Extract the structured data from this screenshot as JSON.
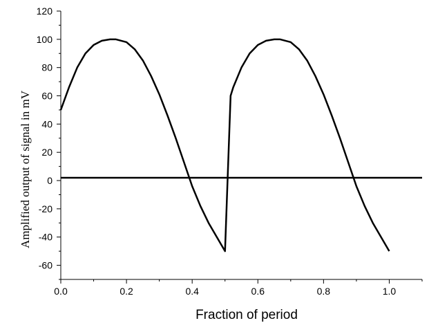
{
  "chart_data": {
    "type": "line",
    "title": "",
    "xlabel": "Fraction of period",
    "ylabel": "Amplified output of signal in mV",
    "xlim": [
      0,
      1.1
    ],
    "ylim": [
      -70,
      120
    ],
    "x_ticks": [
      0.0,
      0.2,
      0.4,
      0.6,
      0.8,
      1.0
    ],
    "x_tick_labels": [
      "0.0",
      "0.2",
      "0.4",
      "0.6",
      "0.8",
      "1.0"
    ],
    "y_ticks": [
      -60,
      -40,
      -20,
      0,
      20,
      40,
      60,
      80,
      100,
      120
    ],
    "y_tick_labels": [
      "-60",
      "-40",
      "-20",
      "0",
      "20",
      "40",
      "60",
      "80",
      "100",
      "120"
    ],
    "grid": false,
    "legend": "none",
    "series": [
      {
        "color": "#000000",
        "x": [
          0.0,
          0.025,
          0.05,
          0.075,
          0.1,
          0.125,
          0.15,
          0.167,
          0.2,
          0.225,
          0.25,
          0.275,
          0.3,
          0.325,
          0.35,
          0.375,
          0.4,
          0.425,
          0.45,
          0.475,
          0.5,
          0.517,
          0.525,
          0.55,
          0.575,
          0.6,
          0.625,
          0.65,
          0.667,
          0.7,
          0.725,
          0.75,
          0.775,
          0.8,
          0.825,
          0.85,
          0.875,
          0.9,
          0.925,
          0.95,
          0.975,
          1.0
        ],
        "y": [
          50,
          66,
          80,
          90,
          96,
          99,
          100,
          100,
          98,
          93,
          85,
          74,
          61,
          46,
          30,
          13,
          -4,
          -18,
          -30,
          -40,
          -50,
          60,
          66,
          80,
          90,
          96,
          99,
          100,
          100,
          98,
          93,
          85,
          74,
          61,
          46,
          30,
          13,
          -4,
          -18,
          -30,
          -40,
          -50
        ]
      },
      {
        "color": "#000000",
        "x": [
          0.0,
          1.1
        ],
        "y": [
          2,
          2
        ]
      }
    ]
  }
}
